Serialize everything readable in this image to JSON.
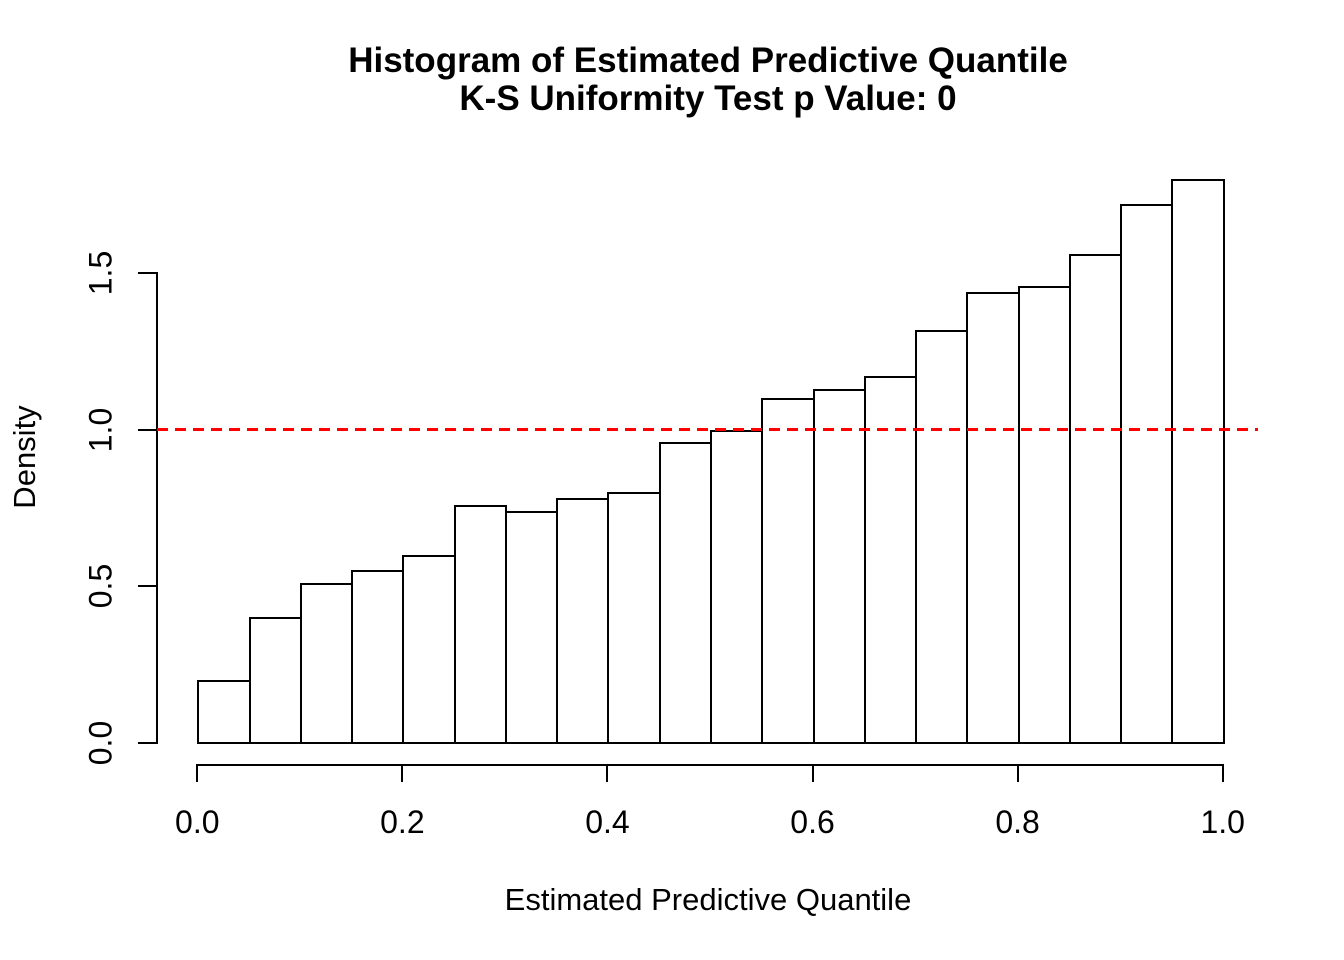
{
  "figure": {
    "title_line1": "Histogram of Estimated Predictive Quantile",
    "title_line2": "K-S Uniformity Test p Value: 0",
    "xlabel": "Estimated Predictive Quantile",
    "ylabel": "Density"
  },
  "chart_data": {
    "type": "bar",
    "subtype": "histogram",
    "title": "Histogram of Estimated Predictive Quantile",
    "subtitle": "K-S Uniformity Test p Value: 0",
    "xlabel": "Estimated Predictive Quantile",
    "ylabel": "Density",
    "xlim": [
      0,
      1
    ],
    "ylim": [
      0,
      1.8
    ],
    "grid": false,
    "bin_width": 0.05,
    "bin_edges": [
      0,
      0.05,
      0.1,
      0.15,
      0.2,
      0.25,
      0.3,
      0.35,
      0.4,
      0.45,
      0.5,
      0.55,
      0.6,
      0.65,
      0.7,
      0.75,
      0.8,
      0.85,
      0.9,
      0.95,
      1.0
    ],
    "densities": [
      0.2,
      0.4,
      0.51,
      0.55,
      0.6,
      0.76,
      0.74,
      0.78,
      0.8,
      0.96,
      1.0,
      1.1,
      1.13,
      1.17,
      1.32,
      1.44,
      1.46,
      1.56,
      1.72,
      1.8
    ],
    "x_ticks": [
      {
        "value": 0.0,
        "label": "0.0"
      },
      {
        "value": 0.2,
        "label": "0.2"
      },
      {
        "value": 0.4,
        "label": "0.4"
      },
      {
        "value": 0.6,
        "label": "0.6"
      },
      {
        "value": 0.8,
        "label": "0.8"
      },
      {
        "value": 1.0,
        "label": "1.0"
      }
    ],
    "y_ticks": [
      {
        "value": 0.0,
        "label": "0.0"
      },
      {
        "value": 0.5,
        "label": "0.5"
      },
      {
        "value": 1.0,
        "label": "1.0"
      },
      {
        "value": 1.5,
        "label": "1.5"
      }
    ],
    "reference_line": {
      "y": 1.0,
      "style": "dashed",
      "color": "#FF0000"
    },
    "bar_fill": "#FFFFFF",
    "bar_stroke": "#000000",
    "axis_color": "#000000"
  }
}
